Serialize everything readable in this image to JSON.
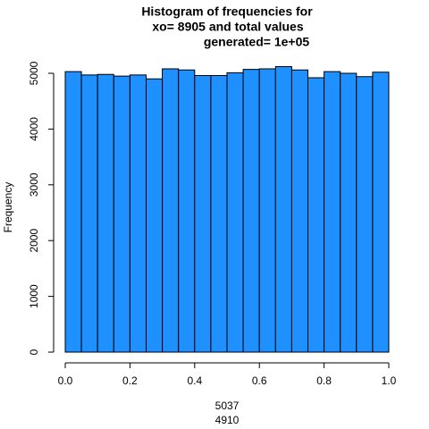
{
  "chart_data": {
    "type": "histogram",
    "title": [
      "Histogram of frequencies for",
      "xo= 8905  and total values",
      "generated= 1e+05"
    ],
    "xlabel": [
      "5037",
      "4910"
    ],
    "ylabel": "Frequency",
    "bins": [
      0,
      0.05,
      0.1,
      0.15,
      0.2,
      0.25,
      0.3,
      0.35,
      0.4,
      0.45,
      0.5,
      0.55,
      0.6,
      0.65,
      0.7,
      0.75,
      0.8,
      0.85,
      0.9,
      0.95,
      1
    ],
    "values": [
      5030,
      4970,
      4980,
      4950,
      4970,
      4900,
      5080,
      5060,
      4960,
      4960,
      5010,
      5070,
      5080,
      5120,
      5060,
      4920,
      5030,
      5000,
      4940,
      5020
    ],
    "color": "#1e90ff",
    "xlim": [
      0,
      1
    ],
    "xticks": [
      {
        "value": 0,
        "label": "0.0"
      },
      0.2,
      0.4,
      0.6,
      0.8,
      {
        "value": 1,
        "label": "1.0"
      }
    ],
    "ylim": [
      0,
      5000
    ],
    "yticks": [
      0,
      1000,
      2000,
      3000,
      4000,
      5000
    ]
  }
}
